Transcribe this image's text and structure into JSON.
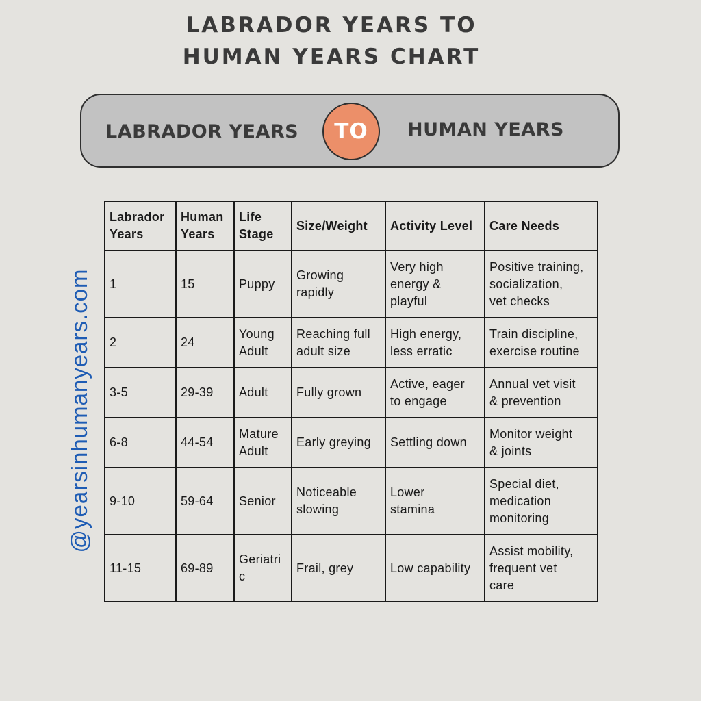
{
  "title": {
    "line1": "LABRADOR YEARS TO",
    "line2": "HUMAN YEARS CHART"
  },
  "banner": {
    "left_label": "LABRADOR YEARS",
    "connector": "TO",
    "right_label": "HUMAN YEARS",
    "accent_color": "#ec8f69"
  },
  "side_handle": {
    "text": "@yearsinhumanyears.com",
    "color": "#1e5cb4"
  },
  "table": {
    "headers": [
      "Labrador\nYears",
      "Human\nYears",
      "Life\nStage",
      "Size/Weight",
      "Activity Level",
      "Care Needs"
    ],
    "rows": [
      [
        "1",
        "15",
        "Puppy",
        "Growing\nrapidly",
        "Very high\nenergy &\nplayful",
        "Positive training,\nsocialization,\nvet checks"
      ],
      [
        "2",
        "24",
        "Young\nAdult",
        "Reaching full\nadult size",
        "High energy,\nless erratic",
        "Train discipline,\nexercise routine"
      ],
      [
        "3-5",
        "29-39",
        "Adult",
        "Fully grown",
        "Active, eager\nto engage",
        "Annual vet visit\n& prevention"
      ],
      [
        "6-8",
        "44-54",
        "Mature\nAdult",
        "Early greying",
        "Settling down",
        "Monitor weight\n& joints"
      ],
      [
        "9-10",
        "59-64",
        "Senior",
        "Noticeable\nslowing",
        "Lower\nstamina",
        "Special diet,\nmedication\nmonitoring"
      ],
      [
        "11-15",
        "69-89",
        "Geriatri\nc",
        "Frail, grey",
        "Low capability",
        "Assist mobility,\nfrequent vet\ncare"
      ]
    ]
  }
}
